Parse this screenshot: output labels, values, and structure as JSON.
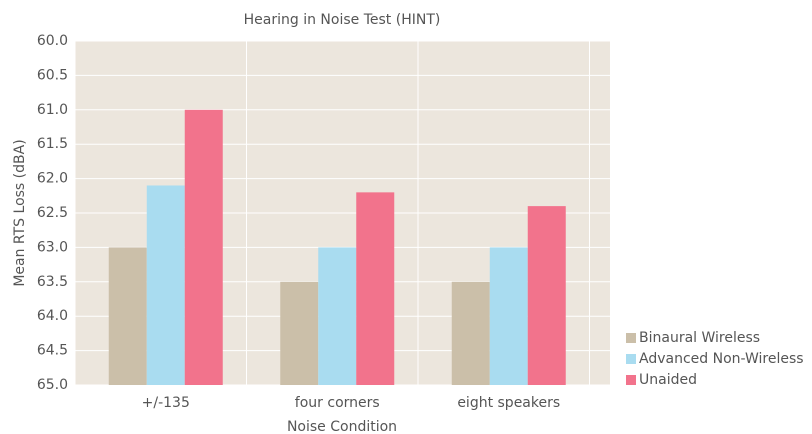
{
  "chart_data": {
    "type": "bar",
    "title": "Hearing in Noise Test (HINT)",
    "xlabel": "Noise Condition",
    "ylabel": "Mean RTS Loss (dBA)",
    "categories": [
      "+/-135",
      "four corners",
      "eight speakers"
    ],
    "series": [
      {
        "name": "Binaural Wireless",
        "color": "#cbbfa9",
        "values": [
          63.0,
          63.5,
          63.5
        ]
      },
      {
        "name": "Advanced Non-Wireless",
        "color": "#a9dcf0",
        "values": [
          62.1,
          63.0,
          63.0
        ]
      },
      {
        "name": "Unaided",
        "color": "#f2738c",
        "values": [
          61.0,
          62.2,
          62.4
        ]
      }
    ],
    "ylim": [
      65,
      60
    ],
    "yticks": [
      {
        "value": 60,
        "label": "60.0"
      },
      {
        "value": 60.5,
        "label": "60.5"
      },
      {
        "value": 61,
        "label": "61.0"
      },
      {
        "value": 61.5,
        "label": "61.5"
      },
      {
        "value": 62,
        "label": "62.0"
      },
      {
        "value": 62.5,
        "label": "62.5"
      },
      {
        "value": 63,
        "label": "63.0"
      },
      {
        "value": 63.5,
        "label": "63.5"
      },
      {
        "value": 64,
        "label": "64.0"
      },
      {
        "value": 64.5,
        "label": "64.5"
      },
      {
        "value": 65,
        "label": "65.0"
      }
    ],
    "grid": true,
    "legend": "lower right"
  }
}
